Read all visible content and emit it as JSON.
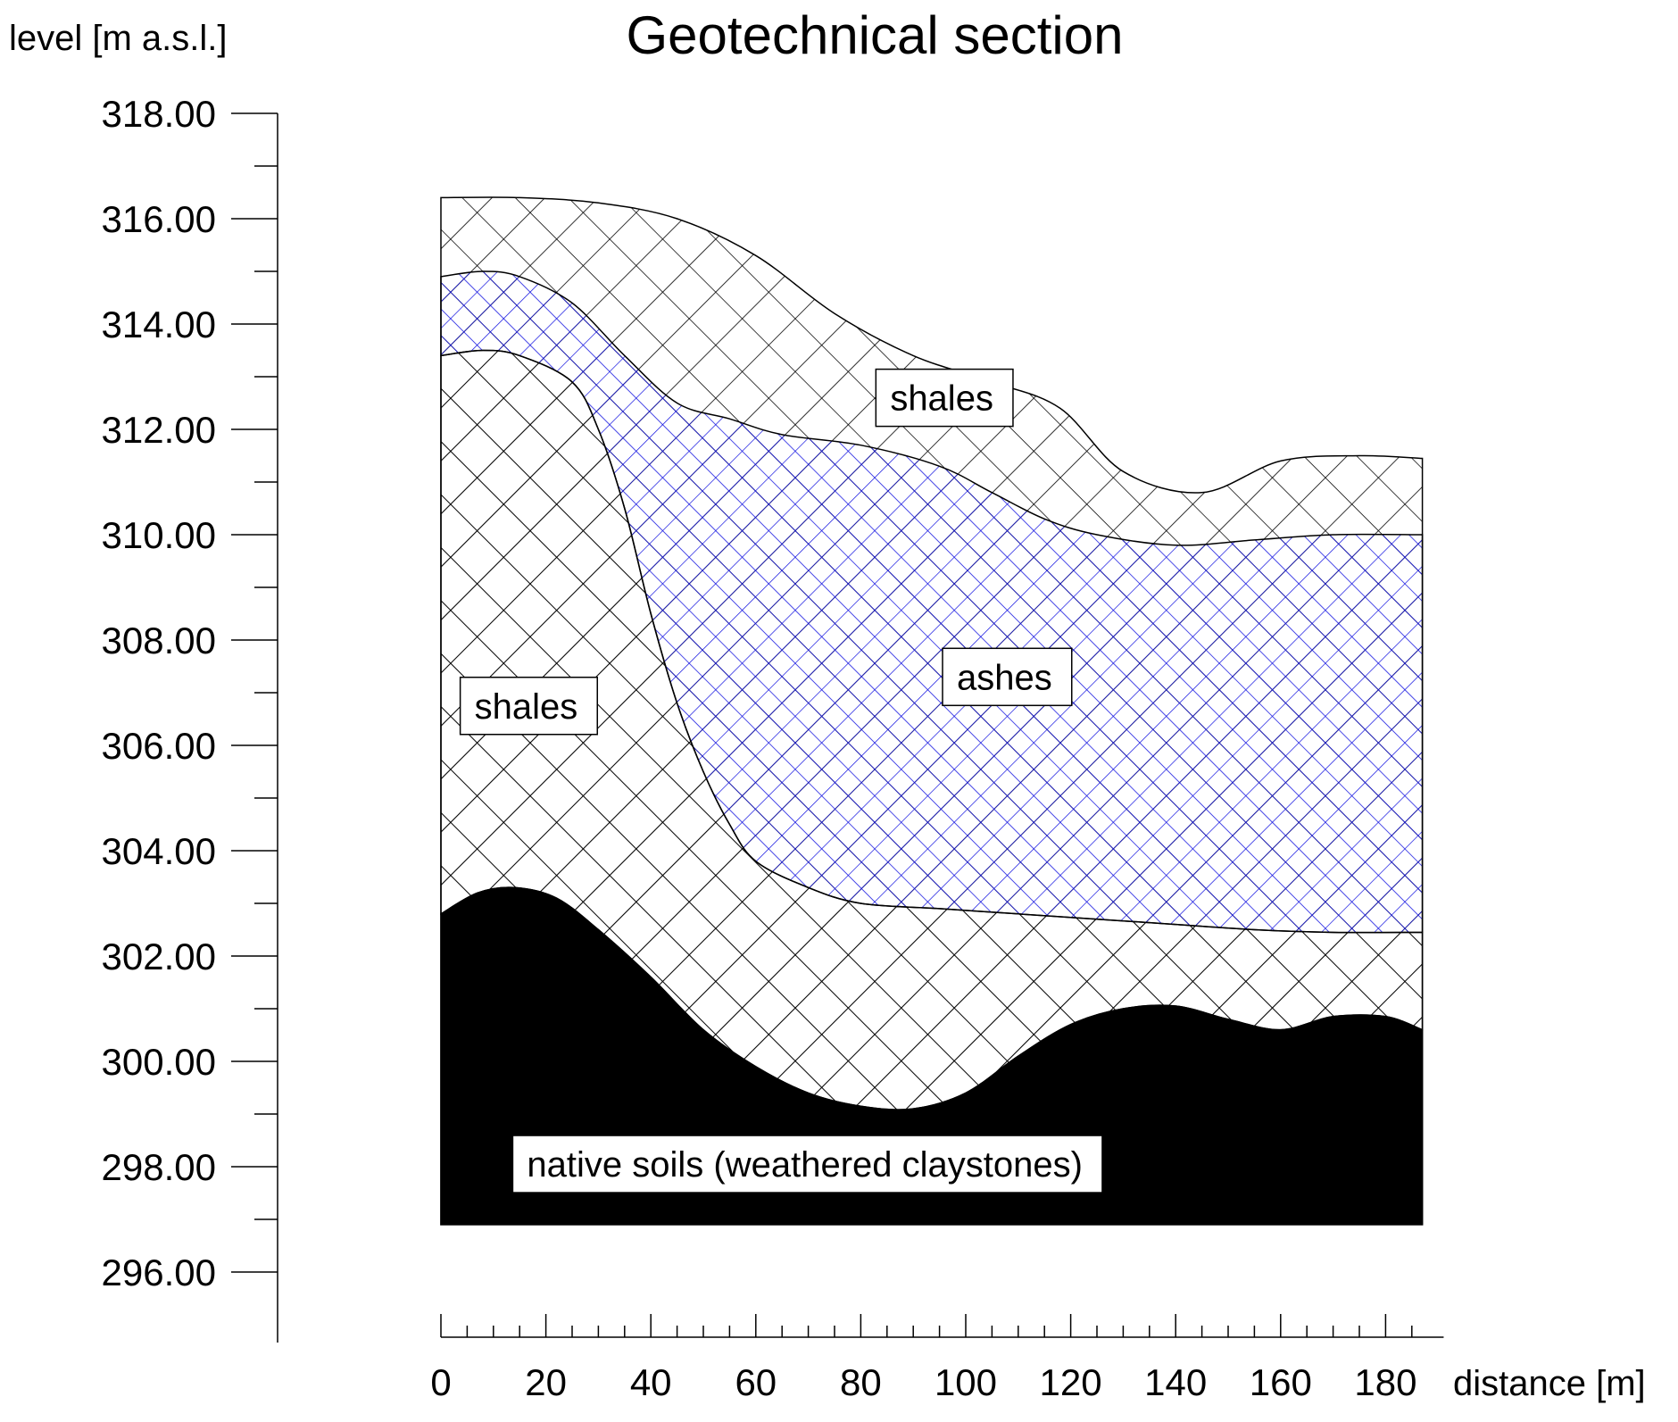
{
  "title": "Geotechnical section",
  "y_axis": {
    "label": "level [m a.s.l.]",
    "min": 295,
    "max": 318,
    "major_step": 2,
    "minor_step": 1,
    "tick_labels": [
      "318.00",
      "316.00",
      "314.00",
      "312.00",
      "310.00",
      "308.00",
      "306.00",
      "304.00",
      "302.00",
      "300.00",
      "298.00",
      "296.00"
    ]
  },
  "x_axis": {
    "label": "distance [m]",
    "min": 0,
    "max": 188,
    "major_step": 20,
    "minor_step": 5,
    "tick_labels": [
      "0",
      "20",
      "40",
      "60",
      "80",
      "100",
      "120",
      "140",
      "160",
      "180"
    ]
  },
  "section": {
    "x_start": 0,
    "x_end": 187,
    "base_level": 296.9
  },
  "layers": [
    {
      "id": "shales-upper",
      "label": "shales",
      "hatch": "crosshatch",
      "hatch_color": "#000000"
    },
    {
      "id": "ashes",
      "label": "ashes",
      "hatch": "crosshatch-fine",
      "hatch_color": "#1010e0"
    },
    {
      "id": "shales-lower",
      "label": "shales",
      "hatch": "crosshatch",
      "hatch_color": "#000000"
    },
    {
      "id": "native",
      "label": "native soils (weathered claystones)",
      "hatch": "solid",
      "hatch_color": "#000000"
    }
  ],
  "boundaries": {
    "ground_surface": [
      [
        0,
        316.4
      ],
      [
        15,
        316.4
      ],
      [
        30,
        316.3
      ],
      [
        45,
        316.0
      ],
      [
        60,
        315.3
      ],
      [
        75,
        314.2
      ],
      [
        90,
        313.4
      ],
      [
        105,
        312.9
      ],
      [
        118,
        312.4
      ],
      [
        130,
        311.2
      ],
      [
        145,
        310.8
      ],
      [
        160,
        311.4
      ],
      [
        175,
        311.5
      ],
      [
        187,
        311.45
      ]
    ],
    "ashes_top": [
      [
        0,
        314.9
      ],
      [
        8,
        315.0
      ],
      [
        15,
        314.9
      ],
      [
        25,
        314.4
      ],
      [
        35,
        313.4
      ],
      [
        45,
        312.5
      ],
      [
        55,
        312.2
      ],
      [
        65,
        311.9
      ],
      [
        80,
        311.7
      ],
      [
        95,
        311.3
      ],
      [
        105,
        310.8
      ],
      [
        115,
        310.3
      ],
      [
        125,
        310.0
      ],
      [
        140,
        309.8
      ],
      [
        155,
        309.9
      ],
      [
        170,
        310.0
      ],
      [
        187,
        310.0
      ]
    ],
    "ashes_bottom": [
      [
        0,
        313.4
      ],
      [
        8,
        313.5
      ],
      [
        15,
        313.4
      ],
      [
        25,
        312.9
      ],
      [
        30,
        312.0
      ],
      [
        35,
        310.5
      ],
      [
        40,
        308.5
      ],
      [
        45,
        306.8
      ],
      [
        50,
        305.5
      ],
      [
        55,
        304.5
      ],
      [
        60,
        303.8
      ],
      [
        70,
        303.3
      ],
      [
        80,
        303.0
      ],
      [
        95,
        302.9
      ],
      [
        110,
        302.8
      ],
      [
        125,
        302.7
      ],
      [
        140,
        302.6
      ],
      [
        155,
        302.5
      ],
      [
        170,
        302.45
      ],
      [
        187,
        302.45
      ]
    ],
    "native_top": [
      [
        0,
        302.8
      ],
      [
        7,
        303.2
      ],
      [
        14,
        303.3
      ],
      [
        22,
        303.1
      ],
      [
        30,
        302.5
      ],
      [
        40,
        301.6
      ],
      [
        50,
        300.6
      ],
      [
        60,
        299.9
      ],
      [
        70,
        299.4
      ],
      [
        80,
        299.15
      ],
      [
        90,
        299.1
      ],
      [
        100,
        299.4
      ],
      [
        110,
        300.1
      ],
      [
        120,
        300.7
      ],
      [
        130,
        301.0
      ],
      [
        140,
        301.05
      ],
      [
        150,
        300.8
      ],
      [
        160,
        300.6
      ],
      [
        170,
        300.85
      ],
      [
        180,
        300.85
      ],
      [
        187,
        300.6
      ]
    ]
  },
  "labels": [
    {
      "text": "shales",
      "x": 85.6,
      "y": 312.6
    },
    {
      "text": "ashes",
      "x": 98.3,
      "y": 307.3
    },
    {
      "text": "shales",
      "x": 6.4,
      "y": 306.75
    },
    {
      "text": "native soils (weathered claystones)",
      "x": 16.4,
      "y": 298.05
    }
  ]
}
